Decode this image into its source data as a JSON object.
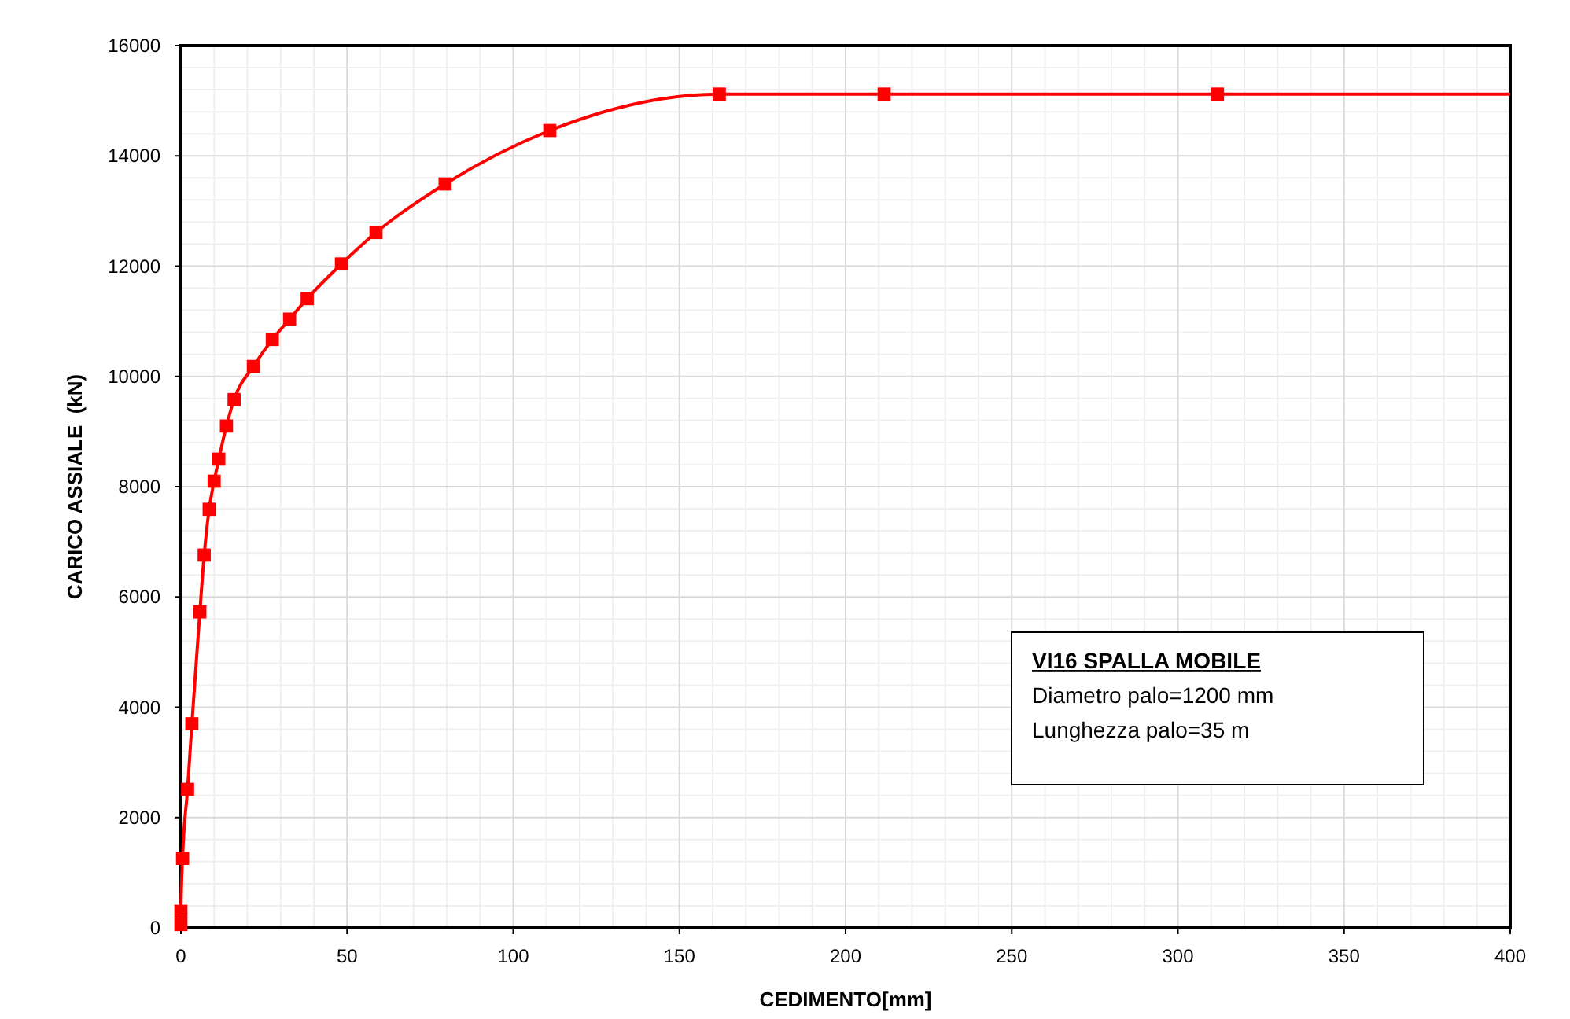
{
  "chart_data": {
    "type": "line",
    "xlabel": "CEDIMENTO[mm]",
    "ylabel": "CARICO ASSIALE  (kN)",
    "annotations": [
      "VI16 SPALLA MOBILE",
      "Diametro palo=1200 mm",
      "Lunghezza palo=35 m"
    ],
    "series": [
      {
        "color": "#ff0000",
        "marker": "square",
        "x": [
          0,
          0,
          0.5,
          2,
          3.3,
          5.7,
          7,
          8.5,
          10,
          11.4,
          13.7,
          16,
          21.8,
          27.5,
          32.7,
          38,
          48.3,
          58.7,
          79.5,
          111,
          162,
          211.6,
          311.9
        ],
        "values": [
          60,
          300,
          1260,
          2510,
          3700,
          5730,
          6760,
          7590,
          8100,
          8500,
          9100,
          9580,
          10180,
          10670,
          11040,
          11410,
          12040,
          12610,
          13490,
          14460,
          15120,
          15120,
          15120
        ]
      },
      {
        "color": "#ff0000",
        "marker": "none",
        "x": [
          311.9,
          400
        ],
        "values": [
          15120,
          15120
        ]
      }
    ],
    "xlim": [
      0,
      400
    ],
    "xticks": [
      0,
      50,
      100,
      150,
      200,
      250,
      300,
      350,
      400
    ],
    "ylim": [
      0,
      16000
    ],
    "yticks": [
      0,
      2000,
      4000,
      6000,
      8000,
      10000,
      12000,
      14000,
      16000
    ],
    "grid": true
  }
}
